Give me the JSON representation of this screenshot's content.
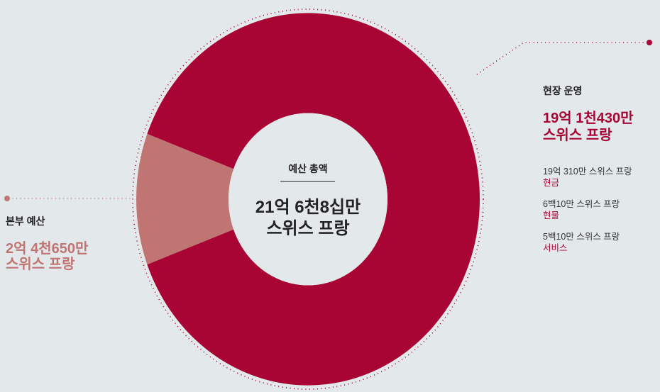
{
  "chart_data": {
    "type": "pie",
    "center_title": "예산 총액",
    "center_lines": [
      "21억 6천8십만",
      "스위스 프랑"
    ],
    "categories": [
      "현장 운영",
      "본부 예산"
    ],
    "values": [
      191430000,
      24650000
    ],
    "value_labels": [
      [
        "19억 1천430만",
        "스위스 프랑"
      ],
      [
        "2억 4천650만",
        "스위스 프랑"
      ]
    ],
    "colors": [
      "#a80534",
      "#c07572"
    ],
    "breakdown": [
      {
        "amount": "19억 310만 스위스 프랑",
        "label": "현금"
      },
      {
        "amount": "6백10만 스위스 프랑",
        "label": "현물"
      },
      {
        "amount": "5백10만 스위스 프랑",
        "label": "서비스"
      }
    ]
  }
}
